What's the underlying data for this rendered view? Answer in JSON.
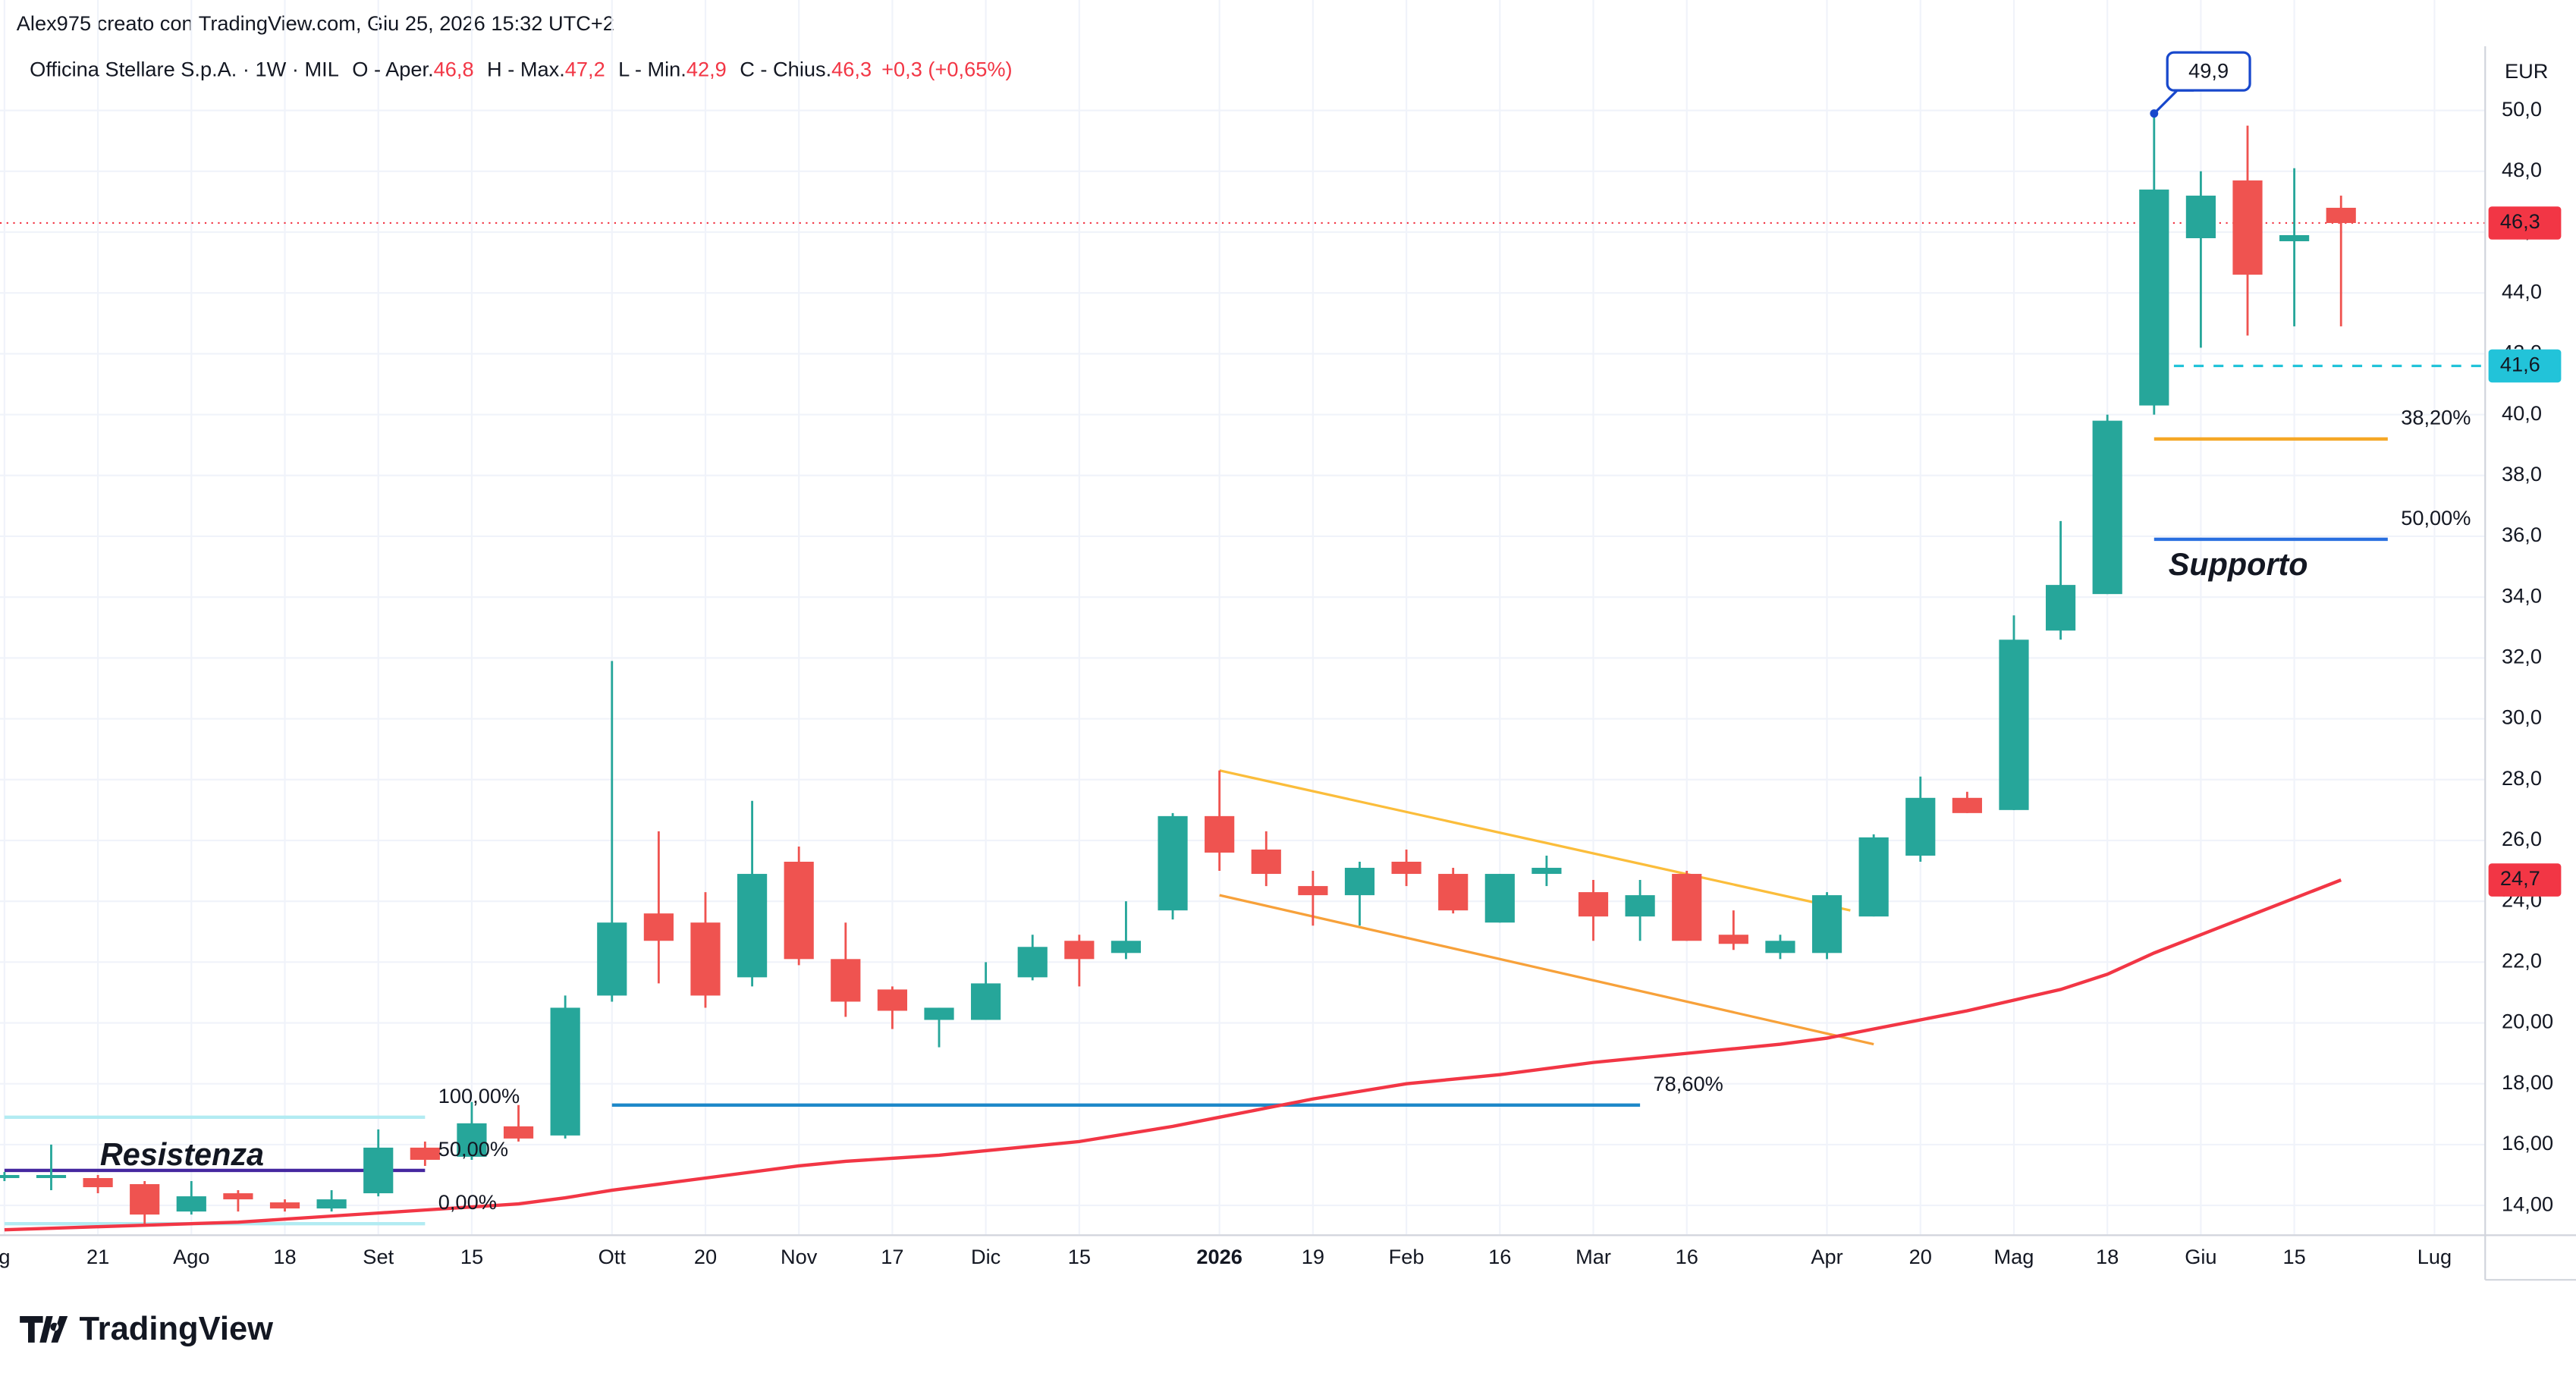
{
  "header": {
    "credit": "Alex975 creato con TradingView.com, Giu 25, 2026 15:32 UTC+2"
  },
  "chart_data": {
    "type": "candlestick",
    "symbol": "Officina Stellare S.p.A. · 1W · MIL",
    "ohlc_legend": [
      {
        "label": "O - Aper.",
        "value": "46,8"
      },
      {
        "label": "H - Max.",
        "value": "47,2"
      },
      {
        "label": "L - Min.",
        "value": "42,9"
      },
      {
        "label": "C - Chius.",
        "value": "46,3"
      }
    ],
    "change": "+0,3 (+0,65%)",
    "currency": "EUR",
    "categories": [
      "g",
      null,
      "21",
      null,
      "Ago",
      null,
      "18",
      null,
      "Set",
      null,
      "15",
      null,
      null,
      "Ott",
      null,
      "20",
      null,
      "Nov",
      null,
      "17",
      null,
      "Dic",
      null,
      "15",
      null,
      null,
      "2026",
      null,
      "19",
      null,
      "Feb",
      null,
      "16",
      null,
      "Mar",
      null,
      "16",
      null,
      null,
      "Apr",
      null,
      "20",
      null,
      "Mag",
      null,
      "18",
      null,
      "Giu",
      null,
      "15",
      null,
      null,
      "Lug"
    ],
    "open": [
      14.9,
      14.9,
      14.9,
      14.7,
      13.8,
      14.4,
      14.1,
      13.9,
      14.4,
      15.9,
      15.6,
      16.6,
      16.3,
      20.9,
      23.6,
      23.3,
      21.5,
      25.3,
      22.1,
      21.1,
      20.1,
      20.1,
      21.5,
      22.7,
      22.3,
      23.7,
      26.8,
      25.7,
      24.5,
      24.2,
      25.3,
      24.9,
      23.3,
      24.9,
      24.3,
      23.5,
      24.9,
      22.9,
      22.3,
      22.3,
      23.5,
      25.5,
      27.4,
      27.0,
      32.9,
      34.1,
      40.3,
      45.8,
      47.7,
      45.7,
      46.8,
      null,
      null
    ],
    "high": [
      15.1,
      16.0,
      15.0,
      14.8,
      14.8,
      14.5,
      14.2,
      14.5,
      16.5,
      16.1,
      17.4,
      17.3,
      20.9,
      31.9,
      26.3,
      24.3,
      27.3,
      25.8,
      23.3,
      21.2,
      20.5,
      22.0,
      22.9,
      22.9,
      24.0,
      26.9,
      28.3,
      26.3,
      25.0,
      25.3,
      25.7,
      25.1,
      24.9,
      25.5,
      24.7,
      24.7,
      25.0,
      23.7,
      22.9,
      24.3,
      26.2,
      28.1,
      27.6,
      33.4,
      36.5,
      40.0,
      49.9,
      48.0,
      49.5,
      48.1,
      47.2,
      null,
      null
    ],
    "low": [
      14.8,
      14.5,
      14.4,
      13.4,
      13.7,
      13.8,
      13.8,
      13.8,
      14.3,
      15.3,
      15.5,
      16.1,
      16.2,
      20.7,
      21.3,
      20.5,
      21.2,
      21.9,
      20.2,
      19.8,
      19.2,
      20.1,
      21.4,
      21.2,
      22.1,
      23.4,
      25.0,
      24.5,
      23.2,
      23.2,
      24.5,
      23.6,
      23.3,
      24.5,
      22.7,
      22.7,
      22.7,
      22.4,
      22.1,
      22.1,
      23.5,
      25.3,
      26.9,
      27.0,
      32.6,
      34.1,
      40.0,
      42.2,
      42.6,
      42.9,
      42.9,
      null,
      null
    ],
    "close": [
      15.0,
      15.0,
      14.6,
      13.7,
      14.3,
      14.2,
      13.9,
      14.2,
      15.9,
      15.5,
      16.7,
      16.2,
      20.5,
      23.3,
      22.7,
      20.9,
      24.9,
      22.1,
      20.7,
      20.4,
      20.5,
      21.3,
      22.5,
      22.1,
      22.7,
      26.8,
      25.6,
      24.9,
      24.2,
      25.1,
      24.9,
      23.7,
      24.9,
      25.1,
      23.5,
      24.2,
      22.7,
      22.6,
      22.7,
      24.2,
      26.1,
      27.4,
      26.9,
      32.6,
      34.4,
      39.8,
      47.4,
      47.2,
      44.6,
      45.9,
      46.3,
      null,
      null
    ],
    "up_color": "#26a69a",
    "down_color": "#ef5350",
    "ma": {
      "color": "#f23645",
      "values": [
        13.2,
        13.25,
        13.3,
        13.35,
        13.4,
        13.45,
        13.55,
        13.65,
        13.75,
        13.85,
        13.95,
        14.05,
        14.25,
        14.5,
        14.7,
        14.9,
        15.1,
        15.3,
        15.45,
        15.55,
        15.65,
        15.8,
        15.95,
        16.1,
        16.35,
        16.6,
        16.9,
        17.2,
        17.5,
        17.75,
        18.0,
        18.15,
        18.3,
        18.5,
        18.7,
        18.85,
        19.0,
        19.15,
        19.3,
        19.5,
        19.8,
        20.1,
        20.4,
        20.75,
        21.1,
        21.6,
        22.3,
        22.9,
        23.5,
        24.1,
        24.7,
        null,
        null
      ],
      "last": {
        "value": 24.7,
        "label": "24,7"
      }
    },
    "ylim": [
      13.02,
      52.11
    ],
    "yticks": [
      {
        "value": 14,
        "label": "14,00"
      },
      {
        "value": 16,
        "label": "16,00"
      },
      {
        "value": 18,
        "label": "18,00"
      },
      {
        "value": 20,
        "label": "20,00"
      },
      {
        "value": 22,
        "label": "22,0"
      },
      {
        "value": 24,
        "label": "24,0"
      },
      {
        "value": 26,
        "label": "26,0"
      },
      {
        "value": 28,
        "label": "28,0"
      },
      {
        "value": 30,
        "label": "30,0"
      },
      {
        "value": 32,
        "label": "32,0"
      },
      {
        "value": 34,
        "label": "34,0"
      },
      {
        "value": 36,
        "label": "36,0"
      },
      {
        "value": 38,
        "label": "38,0"
      },
      {
        "value": 40,
        "label": "40,0"
      },
      {
        "value": 42,
        "label": "42,0"
      },
      {
        "value": 44,
        "label": "44,0"
      },
      {
        "value": 46,
        "label": "46,0"
      },
      {
        "value": 48,
        "label": "48,0"
      },
      {
        "value": 50,
        "label": "50,0"
      }
    ],
    "grid": true,
    "last_price": {
      "value": 46.3,
      "label": "46,3",
      "color": "#f23645"
    },
    "marker_price": {
      "value": 41.6,
      "label": "41,6",
      "color": "#22c3d9",
      "from": 46
    },
    "high_callout": {
      "value": 49.9,
      "label": "49,9",
      "at": 46,
      "color": "#1848cc"
    },
    "trendlines": [
      {
        "from": [
          26,
          28.3
        ],
        "to": [
          39.5,
          23.7
        ],
        "color": "#fbbd3b"
      },
      {
        "from": [
          26,
          24.2
        ],
        "to": [
          40,
          19.3
        ],
        "color": "#f7a13a"
      }
    ],
    "hlines": [
      {
        "value": 16.9,
        "from": 0,
        "to": 9,
        "color": "#b2ebf2",
        "label": "100,00%"
      },
      {
        "value": 15.15,
        "from": 0,
        "to": 9,
        "color": "#4527a0",
        "label": "50,00%"
      },
      {
        "value": 13.4,
        "from": 0,
        "to": 9,
        "color": "#b2ebf2",
        "label": "0,00%"
      },
      {
        "value": 17.3,
        "from": 13,
        "to": 35,
        "color": "#1e88c9",
        "label": "78,60%"
      },
      {
        "value": 39.2,
        "from": 46,
        "to": 51,
        "color": "#f5a623",
        "label": "38,20%"
      },
      {
        "value": 35.9,
        "from": 46,
        "to": 51,
        "color": "#2a6fe0",
        "label": "50,00%"
      }
    ],
    "texts": [
      {
        "text": "Resistenza",
        "value": 15.6,
        "at": 3.8,
        "color": "#a33fbf"
      },
      {
        "text": "Supporto",
        "value": 35.0,
        "at": 47.8,
        "color": "#2a6fe0"
      }
    ]
  },
  "footer": {
    "logo": "TradingView"
  }
}
